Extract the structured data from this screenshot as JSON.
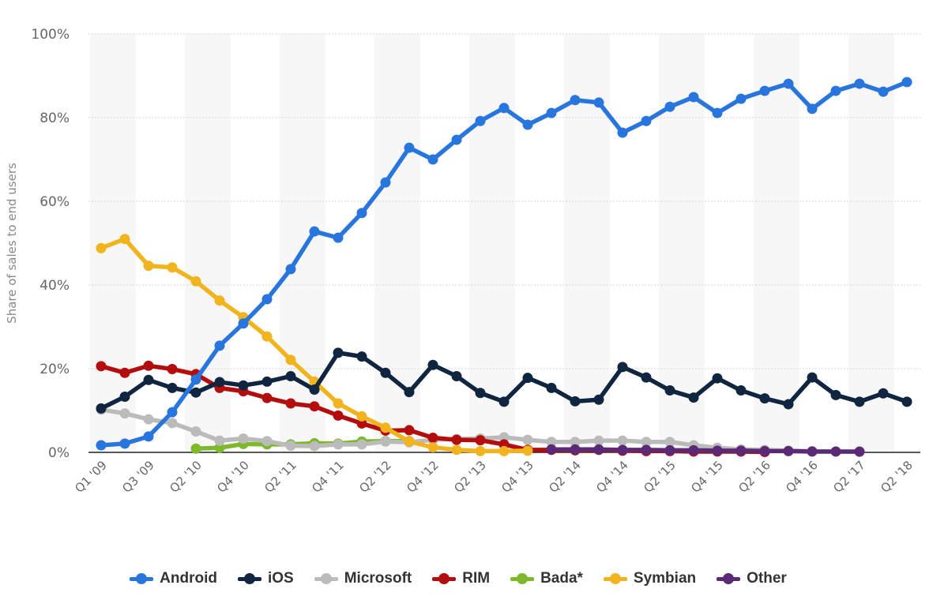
{
  "chart_data": {
    "type": "line",
    "title": "",
    "xlabel": "",
    "ylabel": "Share of sales to end users",
    "ylim": [
      0,
      100
    ],
    "y_ticks": [
      "0%",
      "20%",
      "40%",
      "60%",
      "80%",
      "100%"
    ],
    "y_tick_values": [
      0,
      20,
      40,
      60,
      80,
      100
    ],
    "grid": true,
    "legend_position": "bottom",
    "categories": [
      "Q1 '09",
      "Q2 '09",
      "Q3 '09",
      "Q4 '09",
      "Q2 '10",
      "Q3 '10",
      "Q4 '10",
      "Q1 '11",
      "Q2 '11",
      "Q3 '11",
      "Q4 '11",
      "Q1 '12",
      "Q2 '12",
      "Q3 '12",
      "Q4 '12",
      "Q1 '13",
      "Q2 '13",
      "Q3 '13",
      "Q4 '13",
      "Q1 '14",
      "Q2 '14",
      "Q3 '14",
      "Q4 '14",
      "Q1 '15",
      "Q2 '15",
      "Q3 '15",
      "Q4 '15",
      "Q1 '16",
      "Q2 '16",
      "Q3 '16",
      "Q4 '16",
      "Q1 '17",
      "Q2 '17",
      "Q4 '17",
      "Q2 '18"
    ],
    "x_tick_labels": [
      "Q1 '09",
      "Q3 '09",
      "Q2 '10",
      "Q4 '10",
      "Q2 '11",
      "Q4 '11",
      "Q2 '12",
      "Q4 '12",
      "Q2 '13",
      "Q4 '13",
      "Q2 '14",
      "Q4 '14",
      "Q2 '15",
      "Q4 '15",
      "Q2 '16",
      "Q4 '16",
      "Q2 '17",
      "Q2 '18"
    ],
    "series": [
      {
        "name": "Android",
        "color": "#2876dd",
        "values": [
          1.7,
          2.1,
          3.8,
          9.6,
          17.4,
          25.5,
          30.8,
          36.6,
          43.8,
          52.8,
          51.3,
          57.2,
          64.5,
          72.8,
          70.0,
          74.7,
          79.2,
          82.3,
          78.3,
          81.1,
          84.2,
          83.6,
          76.4,
          79.2,
          82.6,
          84.9,
          81.1,
          84.5,
          86.4,
          88.1,
          82.1,
          86.4,
          88.1,
          86.2,
          88.5
        ]
      },
      {
        "name": "iOS",
        "color": "#0f2540",
        "values": [
          10.5,
          13.3,
          17.3,
          15.4,
          14.3,
          16.8,
          16.0,
          16.9,
          18.2,
          15.0,
          23.8,
          22.9,
          19.0,
          14.4,
          20.9,
          18.2,
          14.2,
          12.1,
          17.8,
          15.4,
          12.2,
          12.6,
          20.4,
          17.9,
          14.8,
          13.1,
          17.7,
          14.8,
          12.9,
          11.5,
          17.9,
          13.7,
          12.1,
          14.1,
          12.1
        ]
      },
      {
        "name": "Microsoft",
        "color": "#bbbbbb",
        "values": [
          10.2,
          9.3,
          7.9,
          7.0,
          5.0,
          2.8,
          3.3,
          2.7,
          1.6,
          1.5,
          1.9,
          1.9,
          2.6,
          2.4,
          3.0,
          3.2,
          3.3,
          3.6,
          3.0,
          2.5,
          2.5,
          2.8,
          2.8,
          2.5,
          2.5,
          1.7,
          1.1,
          0.7,
          0.6,
          0.4,
          0.3,
          0.2,
          0.1,
          null,
          null
        ]
      },
      {
        "name": "RIM",
        "color": "#b40d0e",
        "values": [
          20.6,
          19.0,
          20.7,
          19.9,
          18.7,
          15.4,
          14.6,
          13.0,
          11.7,
          11.0,
          8.8,
          6.9,
          5.2,
          5.3,
          3.5,
          3.0,
          2.9,
          1.9,
          0.6,
          0.6,
          0.5,
          0.6,
          0.4,
          0.3,
          0.3,
          0.2,
          0.2,
          0.2,
          0.1,
          null,
          null,
          null,
          null,
          null,
          null
        ]
      },
      {
        "name": "Bada*",
        "color": "#7eb92c",
        "values": [
          null,
          null,
          null,
          null,
          0.9,
          1.1,
          2.0,
          1.9,
          1.9,
          2.2,
          2.1,
          2.6,
          2.7,
          2.7,
          null,
          null,
          null,
          null,
          null,
          null,
          null,
          null,
          null,
          null,
          null,
          null,
          null,
          null,
          null,
          null,
          null,
          null,
          null,
          null,
          null
        ]
      },
      {
        "name": "Symbian",
        "color": "#f1b41e",
        "values": [
          48.8,
          51.0,
          44.6,
          44.2,
          40.9,
          36.3,
          32.3,
          27.7,
          22.1,
          16.9,
          11.7,
          8.6,
          5.9,
          2.6,
          1.2,
          0.6,
          0.3,
          0.3,
          0.4,
          null,
          null,
          null,
          null,
          null,
          null,
          null,
          null,
          null,
          null,
          null,
          null,
          null,
          null,
          null,
          null
        ]
      },
      {
        "name": "Other",
        "color": "#5a2a77",
        "values": [
          null,
          null,
          null,
          null,
          null,
          null,
          null,
          null,
          null,
          null,
          null,
          null,
          null,
          null,
          null,
          null,
          null,
          null,
          null,
          0.7,
          0.7,
          0.7,
          0.6,
          0.6,
          0.5,
          0.5,
          0.4,
          0.4,
          0.3,
          0.3,
          0.2,
          0.2,
          0.2,
          null,
          null
        ]
      }
    ]
  }
}
